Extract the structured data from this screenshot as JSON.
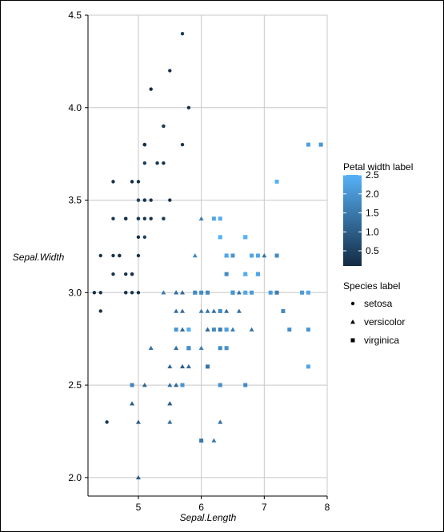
{
  "chart_data": {
    "type": "scatter",
    "title": "",
    "xlabel": "Sepal.Length",
    "ylabel": "Sepal.Width",
    "xlim": [
      4.2,
      8.0
    ],
    "ylim": [
      1.9,
      4.5
    ],
    "x_ticks": [
      5,
      6,
      7,
      8
    ],
    "y_ticks": [
      2.0,
      2.5,
      3.0,
      3.5,
      4.0,
      4.5
    ],
    "x_tick_labels": [
      "5",
      "6",
      "7",
      "8"
    ],
    "y_tick_labels": [
      "2.0",
      "2.5",
      "3.0",
      "3.5",
      "4.0",
      "4.5"
    ],
    "grid": true,
    "color_encoding": "Petal.Width",
    "color_scale": {
      "title": "Petal width label",
      "range": [
        0.1,
        2.5
      ],
      "low_color": "#132B43",
      "high_color": "#56B1F7",
      "ticks": [
        0.5,
        1.0,
        1.5,
        2.0,
        2.5
      ],
      "tick_labels": [
        "0.5",
        "1.0",
        "1.5",
        "2.0",
        "2.5"
      ]
    },
    "shape_legend": {
      "title": "Species label",
      "entries": [
        {
          "label": "setosa",
          "shape": "circle"
        },
        {
          "label": "versicolor",
          "shape": "triangle"
        },
        {
          "label": "virginica",
          "shape": "square"
        }
      ]
    },
    "legend_placement": "right",
    "series": [
      {
        "shape": "circle",
        "points": [
          [
            5.1,
            3.5,
            0.2
          ],
          [
            4.9,
            3.0,
            0.2
          ],
          [
            4.7,
            3.2,
            0.2
          ],
          [
            4.6,
            3.1,
            0.2
          ],
          [
            5.0,
            3.6,
            0.2
          ],
          [
            5.4,
            3.9,
            0.4
          ],
          [
            4.6,
            3.4,
            0.3
          ],
          [
            5.0,
            3.4,
            0.2
          ],
          [
            4.4,
            2.9,
            0.2
          ],
          [
            4.9,
            3.1,
            0.1
          ],
          [
            5.4,
            3.7,
            0.2
          ],
          [
            4.8,
            3.4,
            0.2
          ],
          [
            4.8,
            3.0,
            0.1
          ],
          [
            4.3,
            3.0,
            0.1
          ],
          [
            5.8,
            4.0,
            0.2
          ],
          [
            5.7,
            4.4,
            0.4
          ],
          [
            5.4,
            3.9,
            0.4
          ],
          [
            5.1,
            3.5,
            0.3
          ],
          [
            5.7,
            3.8,
            0.3
          ],
          [
            5.1,
            3.8,
            0.3
          ],
          [
            5.4,
            3.4,
            0.2
          ],
          [
            5.1,
            3.7,
            0.4
          ],
          [
            4.6,
            3.6,
            0.2
          ],
          [
            5.1,
            3.3,
            0.5
          ],
          [
            4.8,
            3.4,
            0.2
          ],
          [
            5.0,
            3.0,
            0.2
          ],
          [
            5.0,
            3.4,
            0.4
          ],
          [
            5.2,
            3.5,
            0.2
          ],
          [
            5.2,
            3.4,
            0.2
          ],
          [
            4.7,
            3.2,
            0.2
          ],
          [
            4.8,
            3.1,
            0.2
          ],
          [
            5.4,
            3.4,
            0.4
          ],
          [
            5.2,
            4.1,
            0.1
          ],
          [
            5.5,
            4.2,
            0.2
          ],
          [
            4.9,
            3.1,
            0.2
          ],
          [
            5.0,
            3.2,
            0.2
          ],
          [
            5.5,
            3.5,
            0.2
          ],
          [
            4.9,
            3.6,
            0.1
          ],
          [
            4.4,
            3.0,
            0.2
          ],
          [
            5.1,
            3.4,
            0.2
          ],
          [
            5.0,
            3.5,
            0.3
          ],
          [
            4.5,
            2.3,
            0.3
          ],
          [
            4.4,
            3.2,
            0.2
          ],
          [
            5.0,
            3.5,
            0.6
          ],
          [
            5.1,
            3.8,
            0.4
          ],
          [
            4.8,
            3.0,
            0.3
          ],
          [
            5.1,
            3.8,
            0.2
          ],
          [
            4.6,
            3.2,
            0.2
          ],
          [
            5.3,
            3.7,
            0.2
          ],
          [
            5.0,
            3.3,
            0.2
          ]
        ]
      },
      {
        "shape": "triangle",
        "points": [
          [
            7.0,
            3.2,
            1.4
          ],
          [
            6.4,
            3.2,
            1.5
          ],
          [
            6.9,
            3.1,
            1.5
          ],
          [
            5.5,
            2.3,
            1.3
          ],
          [
            6.5,
            2.8,
            1.5
          ],
          [
            5.7,
            2.8,
            1.3
          ],
          [
            6.3,
            3.3,
            1.6
          ],
          [
            4.9,
            2.4,
            1.0
          ],
          [
            6.6,
            2.9,
            1.3
          ],
          [
            5.2,
            2.7,
            1.4
          ],
          [
            5.0,
            2.0,
            1.0
          ],
          [
            5.9,
            3.0,
            1.5
          ],
          [
            6.0,
            2.2,
            1.0
          ],
          [
            6.1,
            2.9,
            1.4
          ],
          [
            5.6,
            2.9,
            1.3
          ],
          [
            6.7,
            3.1,
            1.4
          ],
          [
            5.6,
            3.0,
            1.5
          ],
          [
            5.8,
            2.7,
            1.0
          ],
          [
            6.2,
            2.2,
            1.5
          ],
          [
            5.6,
            2.5,
            1.1
          ],
          [
            5.9,
            3.2,
            1.8
          ],
          [
            6.1,
            2.8,
            1.3
          ],
          [
            6.3,
            2.5,
            1.5
          ],
          [
            6.1,
            2.8,
            1.2
          ],
          [
            6.4,
            2.9,
            1.3
          ],
          [
            6.6,
            3.0,
            1.4
          ],
          [
            6.8,
            2.8,
            1.4
          ],
          [
            6.7,
            3.0,
            1.7
          ],
          [
            6.0,
            2.9,
            1.5
          ],
          [
            5.7,
            2.6,
            1.0
          ],
          [
            5.5,
            2.4,
            1.1
          ],
          [
            5.5,
            2.4,
            1.0
          ],
          [
            5.8,
            2.7,
            1.2
          ],
          [
            6.0,
            2.7,
            1.6
          ],
          [
            5.4,
            3.0,
            1.5
          ],
          [
            6.0,
            3.4,
            1.6
          ],
          [
            6.7,
            3.1,
            1.5
          ],
          [
            6.3,
            2.3,
            1.3
          ],
          [
            5.6,
            3.0,
            1.3
          ],
          [
            5.5,
            2.5,
            1.3
          ],
          [
            5.5,
            2.6,
            1.2
          ],
          [
            6.1,
            3.0,
            1.4
          ],
          [
            5.8,
            2.6,
            1.2
          ],
          [
            5.0,
            2.3,
            1.0
          ],
          [
            5.6,
            2.7,
            1.3
          ],
          [
            5.7,
            3.0,
            1.2
          ],
          [
            5.7,
            2.9,
            1.3
          ],
          [
            6.2,
            2.9,
            1.3
          ],
          [
            5.1,
            2.5,
            1.1
          ],
          [
            5.7,
            2.8,
            1.3
          ]
        ]
      },
      {
        "shape": "square",
        "points": [
          [
            6.3,
            3.3,
            2.5
          ],
          [
            5.8,
            2.7,
            1.9
          ],
          [
            7.1,
            3.0,
            2.1
          ],
          [
            6.3,
            2.9,
            1.8
          ],
          [
            6.5,
            3.0,
            2.2
          ],
          [
            7.6,
            3.0,
            2.1
          ],
          [
            4.9,
            2.5,
            1.7
          ],
          [
            7.3,
            2.9,
            1.8
          ],
          [
            6.7,
            2.5,
            1.8
          ],
          [
            7.2,
            3.6,
            2.5
          ],
          [
            6.5,
            3.2,
            2.0
          ],
          [
            6.4,
            2.7,
            1.9
          ],
          [
            6.8,
            3.0,
            2.1
          ],
          [
            5.7,
            2.5,
            2.0
          ],
          [
            5.8,
            2.8,
            2.4
          ],
          [
            6.4,
            3.2,
            2.3
          ],
          [
            6.5,
            3.0,
            1.8
          ],
          [
            7.7,
            3.8,
            2.2
          ],
          [
            7.7,
            2.6,
            2.3
          ],
          [
            6.0,
            2.2,
            1.5
          ],
          [
            6.9,
            3.2,
            2.3
          ],
          [
            5.6,
            2.8,
            2.0
          ],
          [
            7.7,
            2.8,
            2.0
          ],
          [
            6.3,
            2.7,
            1.8
          ],
          [
            6.7,
            3.3,
            2.1
          ],
          [
            7.2,
            3.2,
            1.8
          ],
          [
            6.2,
            2.8,
            1.8
          ],
          [
            6.1,
            3.0,
            1.8
          ],
          [
            6.4,
            2.8,
            2.1
          ],
          [
            7.2,
            3.0,
            1.6
          ],
          [
            7.4,
            2.8,
            1.9
          ],
          [
            7.9,
            3.8,
            2.0
          ],
          [
            6.4,
            2.8,
            2.2
          ],
          [
            6.3,
            2.8,
            1.5
          ],
          [
            6.1,
            2.6,
            1.4
          ],
          [
            7.7,
            3.0,
            2.3
          ],
          [
            6.3,
            3.4,
            2.4
          ],
          [
            6.4,
            3.1,
            1.8
          ],
          [
            6.0,
            3.0,
            1.8
          ],
          [
            6.9,
            3.1,
            2.1
          ],
          [
            6.7,
            3.1,
            2.4
          ],
          [
            6.9,
            3.1,
            2.3
          ],
          [
            5.8,
            2.7,
            1.9
          ],
          [
            6.8,
            3.2,
            2.3
          ],
          [
            6.7,
            3.3,
            2.5
          ],
          [
            6.7,
            3.0,
            2.3
          ],
          [
            6.3,
            2.5,
            1.9
          ],
          [
            6.5,
            3.0,
            2.0
          ],
          [
            6.2,
            3.4,
            2.3
          ],
          [
            5.9,
            3.0,
            1.8
          ]
        ]
      }
    ]
  }
}
